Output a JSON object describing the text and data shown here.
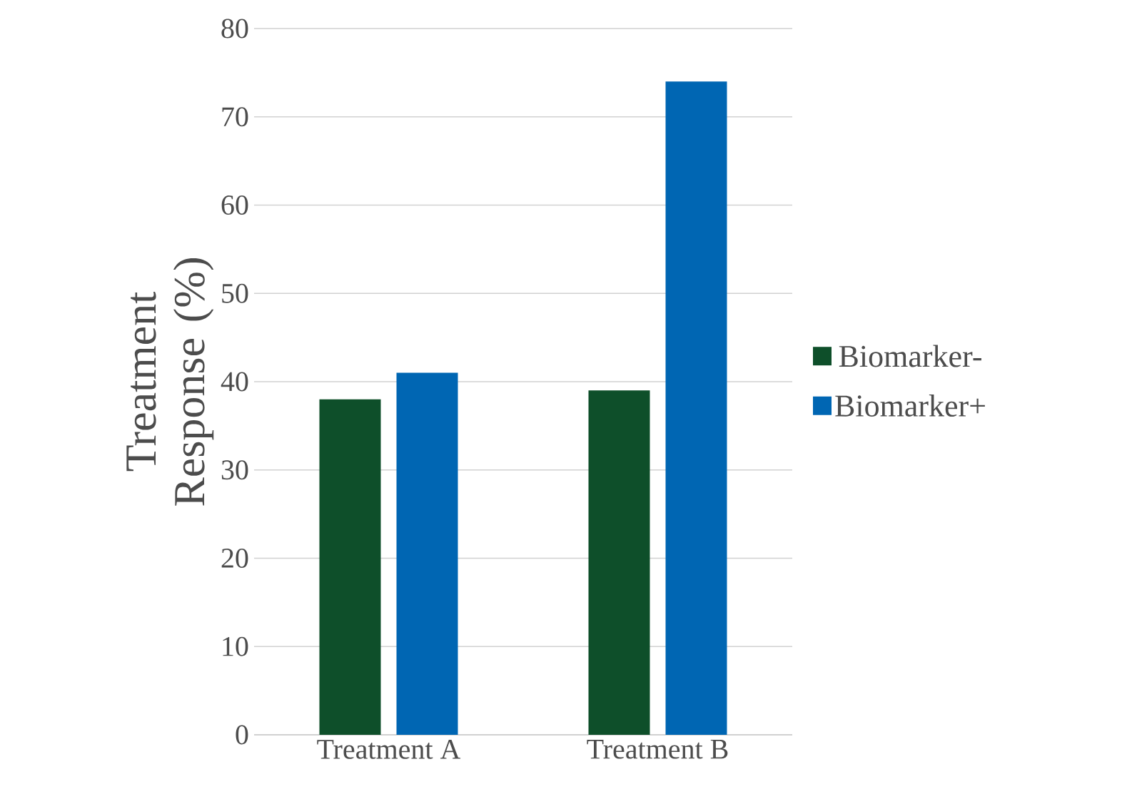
{
  "chart_data": {
    "type": "bar",
    "ylabel": "Treatment Response (%)",
    "categories": [
      "Treatment A",
      "Treatment B"
    ],
    "series": [
      {
        "name": "Biomarker-",
        "color": "#0e4f2a",
        "values": [
          38,
          39
        ]
      },
      {
        "name": "Biomarker+",
        "color": "#0066b3",
        "values": [
          41,
          74
        ]
      }
    ],
    "ylim": [
      0,
      80
    ],
    "yticks": [
      0,
      10,
      20,
      30,
      40,
      50,
      60,
      70,
      80
    ],
    "grid": "y",
    "legend": "right"
  }
}
